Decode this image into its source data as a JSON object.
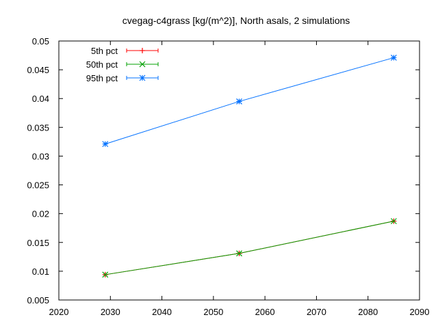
{
  "chart_data": {
    "type": "line",
    "title": "cvegag-c4grass [kg/(m^2)], North asals, 2 simulations",
    "xlabel": "",
    "ylabel": "",
    "xlim": [
      2020,
      2090
    ],
    "ylim": [
      0.005,
      0.05
    ],
    "x_ticks": [
      2020,
      2030,
      2040,
      2050,
      2060,
      2070,
      2080,
      2090
    ],
    "y_ticks": [
      0.005,
      0.01,
      0.015,
      0.02,
      0.025,
      0.03,
      0.035,
      0.04,
      0.045,
      0.05
    ],
    "x_tick_labels": [
      "2020",
      "2030",
      "2040",
      "2050",
      "2060",
      "2070",
      "2080",
      "2090"
    ],
    "y_tick_labels": [
      "0.005",
      "0.01",
      "0.015",
      "0.02",
      "0.025",
      "0.03",
      "0.035",
      "0.04",
      "0.045",
      "0.05"
    ],
    "legend_position": "top-left",
    "grid": false,
    "x": [
      2029,
      2055,
      2085
    ],
    "series": [
      {
        "name": "5th pct",
        "color": "#ff0000",
        "marker": "plus",
        "values": [
          0.0094,
          0.0131,
          0.0187
        ]
      },
      {
        "name": "50th pct",
        "color": "#00a000",
        "marker": "cross",
        "values": [
          0.0094,
          0.0131,
          0.0187
        ]
      },
      {
        "name": "95th pct",
        "color": "#0070ff",
        "marker": "star",
        "values": [
          0.0321,
          0.0395,
          0.0471
        ]
      }
    ]
  }
}
